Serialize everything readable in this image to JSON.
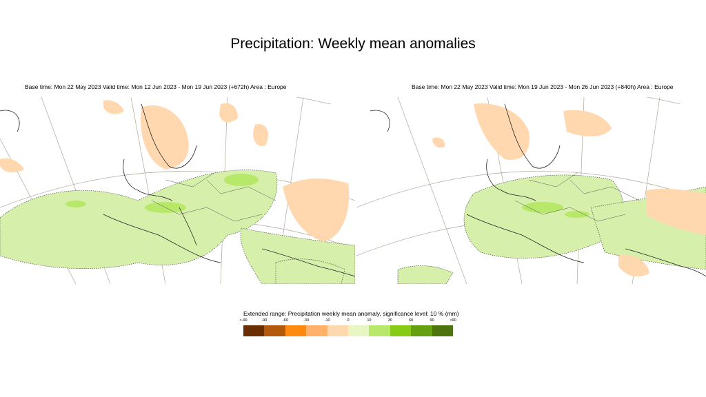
{
  "title": "Precipitation: Weekly mean anomalies",
  "maps": [
    {
      "caption": "Base time: Mon 22 May 2023 Valid time: Mon 12 Jun 2023 - Mon 19 Jun 2023 (+672h) Area : Europe"
    },
    {
      "caption": "Base time: Mon 22 May 2023 Valid time: Mon 19 Jun 2023 - Mon 26 Jun 2023 (+840h) Area : Europe"
    }
  ],
  "legend": {
    "title": "Extended range: Precipitation weekly mean anomaly, significance level: 10 % (mm)",
    "ticks": [
      "<-90",
      "-90",
      "-60",
      "-30",
      "-10",
      "0",
      "10",
      "30",
      "60",
      "90",
      ">90"
    ],
    "colors": [
      "#6b2e00",
      "#b25a0c",
      "#ff8a10",
      "#ffb069",
      "#ffd8b0",
      "#e8f6c4",
      "#b8e86a",
      "#86cc14",
      "#66a010",
      "#4d740e"
    ]
  }
}
